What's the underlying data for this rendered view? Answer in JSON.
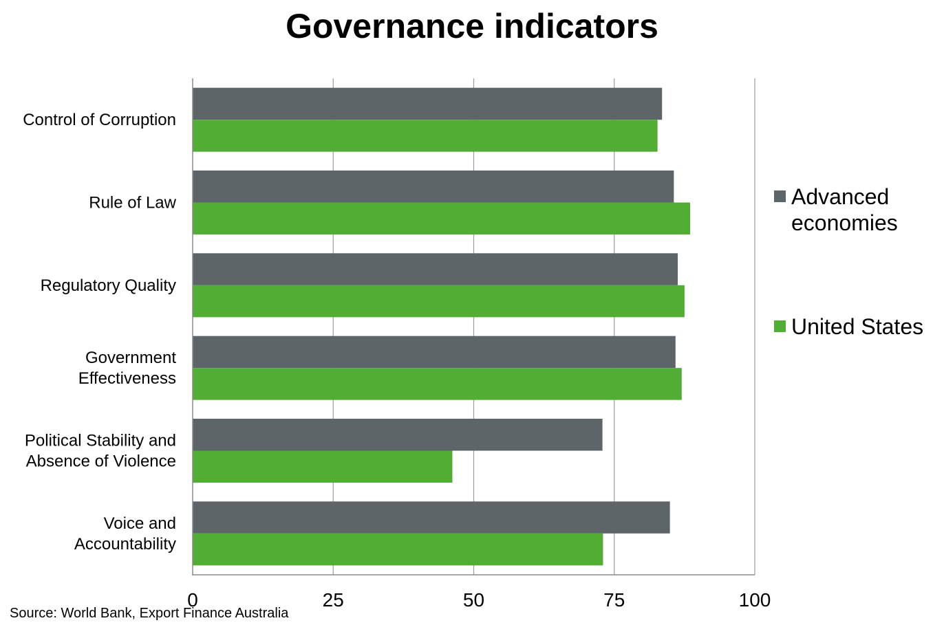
{
  "chart_data": {
    "type": "bar",
    "orientation": "horizontal",
    "title": "Governance indicators",
    "categories": [
      [
        "Control of Corruption"
      ],
      [
        "Rule of Law"
      ],
      [
        "Regulatory Quality"
      ],
      [
        "Government",
        "Effectiveness"
      ],
      [
        "Political Stability and",
        "Absence of Violence"
      ],
      [
        "Voice and",
        "Accountability"
      ]
    ],
    "series": [
      {
        "name": "Advanced economies",
        "color": "#5d6568",
        "values": [
          83.5,
          85.6,
          86.3,
          85.9,
          72.9,
          84.9
        ]
      },
      {
        "name": "United States",
        "color": "#52ad35",
        "values": [
          82.7,
          88.5,
          87.5,
          87.0,
          46.2,
          73.0
        ]
      }
    ],
    "xlim": [
      0,
      100
    ],
    "xticks": [
      0,
      25,
      50,
      75,
      100
    ],
    "grid": true,
    "legend_position": "right"
  },
  "source": "Source: World Bank, Export Finance Australia"
}
